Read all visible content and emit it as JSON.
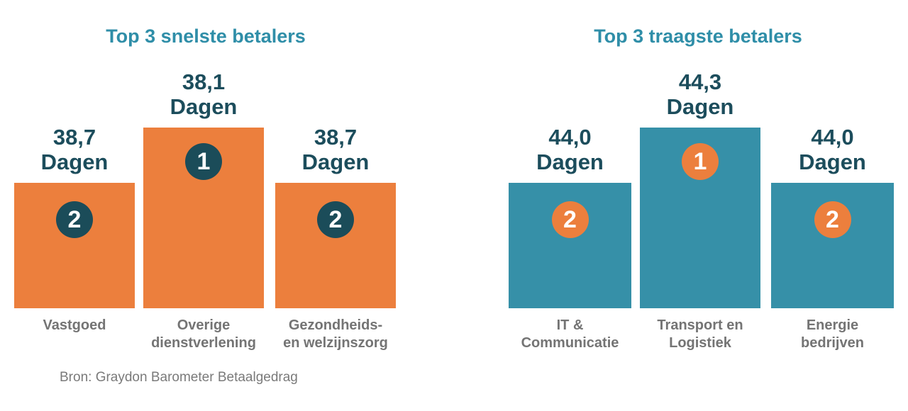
{
  "colors": {
    "orange": "#ec7f3d",
    "teal": "#3690a8",
    "dark_badge": "#1b4c59",
    "title": "#2f8ea8",
    "value_text": "#1c4d5c",
    "category_text": "#747474"
  },
  "source": "Bron: Graydon Barometer Betaalgedrag",
  "chart_data": [
    {
      "type": "bar",
      "title": "Top 3 snelste betalers",
      "unit": "Dagen",
      "categories": [
        [
          "Vastgoed"
        ],
        [
          "Overige",
          "dienstverlening"
        ],
        [
          "Gezondheids-",
          "en welzijnszorg"
        ]
      ],
      "values": [
        38.7,
        38.1,
        38.7
      ],
      "value_labels": [
        "38,7",
        "38,1",
        "38,7"
      ],
      "ranks": [
        "2",
        "1",
        "2"
      ],
      "bar_color": "#ec7f3d",
      "badge_color": "#1b4c59"
    },
    {
      "type": "bar",
      "title": "Top 3 traagste betalers",
      "unit": "Dagen",
      "categories": [
        [
          "IT &",
          "Communicatie"
        ],
        [
          "Transport en",
          "Logistiek"
        ],
        [
          "Energie",
          "bedrijven"
        ]
      ],
      "values": [
        44.0,
        44.3,
        44.0
      ],
      "value_labels": [
        "44,0",
        "44,3",
        "44,0"
      ],
      "ranks": [
        "2",
        "1",
        "2"
      ],
      "bar_color": "#3690a8",
      "badge_color": "#ec7f3d"
    }
  ]
}
